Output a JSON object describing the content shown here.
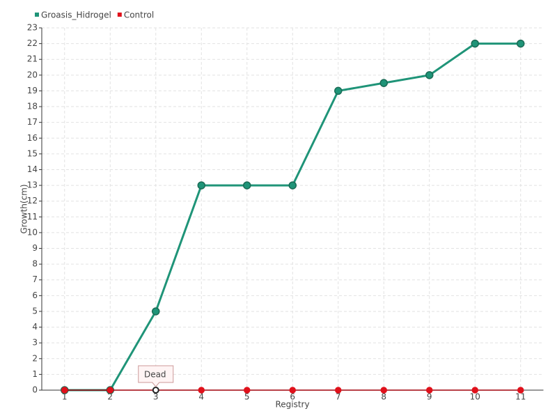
{
  "chart_data": {
    "type": "line",
    "categories": [
      "1",
      "2",
      "3",
      "4",
      "5",
      "6",
      "7",
      "8",
      "9",
      "10",
      "11"
    ],
    "series": [
      {
        "name": "Groasis_Hidrogel",
        "color": "#1f9478",
        "values": [
          0,
          0,
          5,
          13,
          13,
          13,
          19,
          19.5,
          20,
          22,
          22
        ]
      },
      {
        "name": "Control",
        "color": "#e0111b",
        "values": [
          0,
          0,
          0,
          0,
          0,
          0,
          0,
          0,
          0,
          0,
          0
        ]
      }
    ],
    "xlabel": "Registry",
    "ylabel": "Growth(cm)",
    "ylim": [
      0,
      23
    ],
    "yticks": [
      0,
      1,
      2,
      3,
      4,
      5,
      6,
      7,
      8,
      9,
      10,
      11,
      12,
      13,
      14,
      15,
      16,
      17,
      18,
      19,
      20,
      21,
      22,
      23
    ],
    "grid": true,
    "legend": "top-left",
    "annotations": [
      {
        "text": "Dead",
        "series": 1,
        "x": "3"
      }
    ]
  }
}
